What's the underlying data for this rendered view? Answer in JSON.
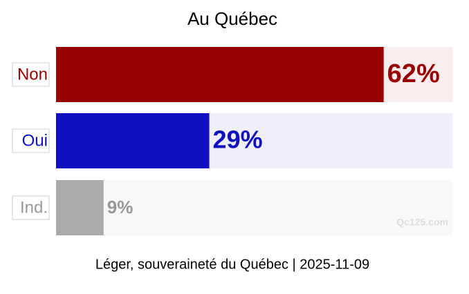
{
  "chart_data": {
    "type": "bar",
    "orientation": "horizontal",
    "title": "Au Québec",
    "categories": [
      "Non",
      "Oui",
      "Ind."
    ],
    "values": [
      62,
      29,
      9
    ],
    "value_labels": [
      "62%",
      "29%",
      "9%"
    ],
    "colors": [
      "#990000",
      "#1010c0",
      "#aaaaaa"
    ],
    "track_colors": [
      "#f9eded",
      "#efeffa",
      "#f8f8f8"
    ],
    "label_colors": [
      "#990000",
      "#1010c0",
      "#999999"
    ],
    "xlim": [
      0,
      75
    ],
    "source": "Léger, souveraineté du Québec | 2025-11-09",
    "watermark": "Qc125.com"
  }
}
